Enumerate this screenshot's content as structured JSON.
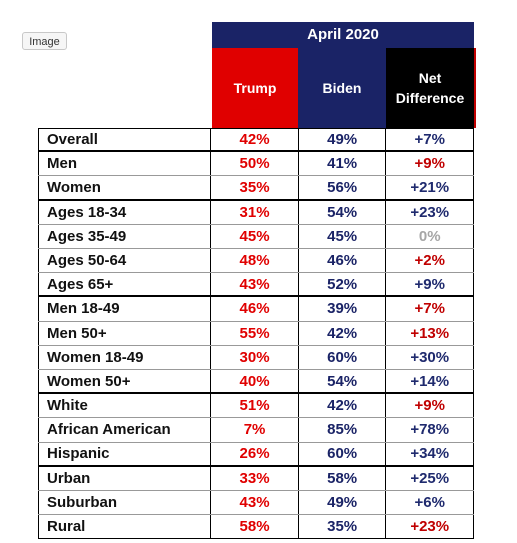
{
  "button": "Image",
  "header": {
    "period": "April 2020",
    "columns": [
      "Trump",
      "Biden",
      "Net Difference"
    ]
  },
  "rows": [
    {
      "label": "Overall",
      "trump": "42%",
      "biden": "49%",
      "net": "+7%",
      "net_color": "#1f2a6e"
    },
    {
      "label": "Men",
      "trump": "50%",
      "biden": "41%",
      "net": "+9%",
      "net_color": "#c00000"
    },
    {
      "label": "Women",
      "trump": "35%",
      "biden": "56%",
      "net": "+21%",
      "net_color": "#1f2a6e"
    },
    {
      "label": "Ages 18-34",
      "trump": "31%",
      "biden": "54%",
      "net": "+23%",
      "net_color": "#1f2a6e"
    },
    {
      "label": "Ages 35-49",
      "trump": "45%",
      "biden": "45%",
      "net": "0%",
      "net_color": "#a6a6a6"
    },
    {
      "label": "Ages 50-64",
      "trump": "48%",
      "biden": "46%",
      "net": "+2%",
      "net_color": "#c00000"
    },
    {
      "label": "Ages 65+",
      "trump": "43%",
      "biden": "52%",
      "net": "+9%",
      "net_color": "#1f2a6e"
    },
    {
      "label": "Men 18-49",
      "trump": "46%",
      "biden": "39%",
      "net": "+7%",
      "net_color": "#c00000"
    },
    {
      "label": "Men 50+",
      "trump": "55%",
      "biden": "42%",
      "net": "+13%",
      "net_color": "#c00000"
    },
    {
      "label": "Women 18-49",
      "trump": "30%",
      "biden": "60%",
      "net": "+30%",
      "net_color": "#1f2a6e"
    },
    {
      "label": "Women 50+",
      "trump": "40%",
      "biden": "54%",
      "net": "+14%",
      "net_color": "#1f2a6e"
    },
    {
      "label": "White",
      "trump": "51%",
      "biden": "42%",
      "net": "+9%",
      "net_color": "#c00000"
    },
    {
      "label": "African American",
      "trump": "7%",
      "biden": "85%",
      "net": "+78%",
      "net_color": "#1f2a6e"
    },
    {
      "label": "Hispanic",
      "trump": "26%",
      "biden": "60%",
      "net": "+34%",
      "net_color": "#1f2a6e"
    },
    {
      "label": "Urban",
      "trump": "33%",
      "biden": "58%",
      "net": "+25%",
      "net_color": "#1f2a6e"
    },
    {
      "label": "Suburban",
      "trump": "43%",
      "biden": "49%",
      "net": "+6%",
      "net_color": "#1f2a6e"
    },
    {
      "label": "Rural",
      "trump": "58%",
      "biden": "35%",
      "net": "+23%",
      "net_color": "#c00000"
    }
  ]
}
